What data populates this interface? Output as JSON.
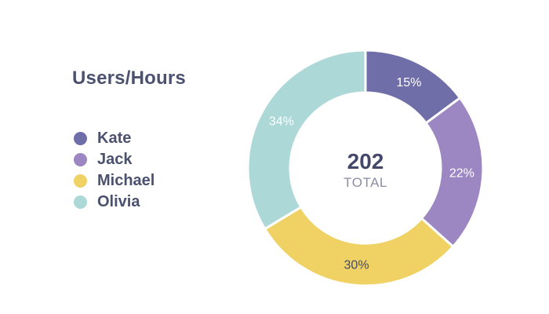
{
  "chart_data": {
    "type": "pie",
    "subtype": "donut",
    "title": "Users/Hours",
    "categories": [
      "Kate",
      "Jack",
      "Michael",
      "Olivia"
    ],
    "values": [
      15,
      22,
      30,
      34
    ],
    "value_labels": [
      "15%",
      "22%",
      "30%",
      "34%"
    ],
    "colors": [
      "#6f6ea8",
      "#9d87c2",
      "#f0d264",
      "#acd9d8"
    ],
    "label_colors": [
      "#ffffff",
      "#ffffff",
      "#44496a",
      "#ffffff"
    ],
    "center_value": "202",
    "center_label": "TOTAL",
    "legend_position": "left"
  },
  "title": "Users/Hours",
  "legend": [
    {
      "label": "Kate",
      "color": "#6f6ea8"
    },
    {
      "label": "Jack",
      "color": "#9d87c2"
    },
    {
      "label": "Michael",
      "color": "#f0d264"
    },
    {
      "label": "Olivia",
      "color": "#acd9d8"
    }
  ],
  "center": {
    "value": "202",
    "label": "TOTAL"
  }
}
